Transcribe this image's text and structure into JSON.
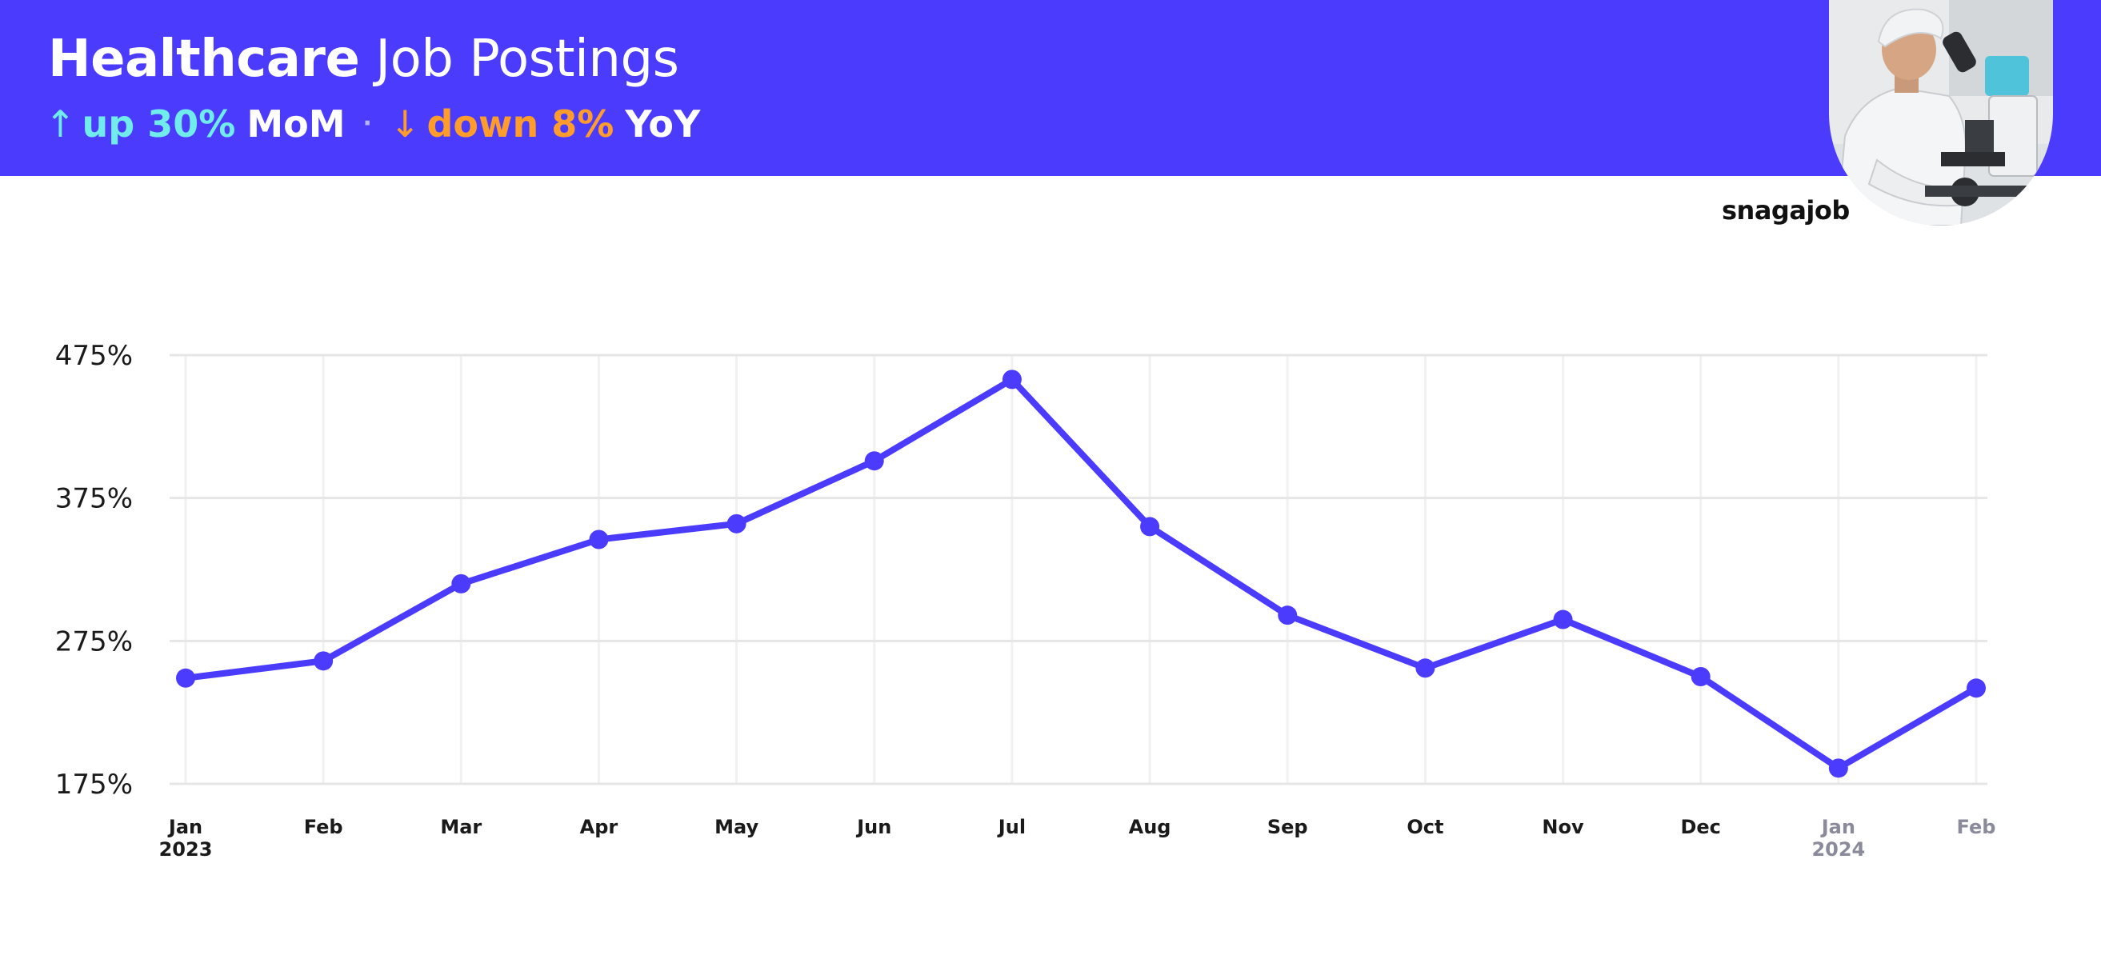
{
  "header": {
    "title_bold": "Healthcare",
    "title_light": "Job Postings",
    "mom": {
      "arrow": "↑",
      "text": "up 30%",
      "suffix": "MoM"
    },
    "separator": "·",
    "yoy": {
      "arrow": "↓",
      "text": "down 8%",
      "suffix": "YoY"
    }
  },
  "brand": "snagajob",
  "colors": {
    "banner": "#4b3cfd",
    "line": "#4b3cfd",
    "up": "#71ecec",
    "down": "#ff9c2b"
  },
  "chart_data": {
    "type": "line",
    "title": "",
    "xlabel": "",
    "ylabel": "",
    "ylim": [
      175,
      475
    ],
    "yticks": [
      "475%",
      "375%",
      "275%",
      "175%"
    ],
    "grid": true,
    "categories": [
      {
        "month": "Jan",
        "year": "2023"
      },
      {
        "month": "Feb",
        "year": ""
      },
      {
        "month": "Mar",
        "year": ""
      },
      {
        "month": "Apr",
        "year": ""
      },
      {
        "month": "May",
        "year": ""
      },
      {
        "month": "Jun",
        "year": ""
      },
      {
        "month": "Jul",
        "year": ""
      },
      {
        "month": "Aug",
        "year": ""
      },
      {
        "month": "Sep",
        "year": ""
      },
      {
        "month": "Oct",
        "year": ""
      },
      {
        "month": "Nov",
        "year": ""
      },
      {
        "month": "Dec",
        "year": ""
      },
      {
        "month": "Jan",
        "year": "2024"
      },
      {
        "month": "Feb",
        "year": ""
      }
    ],
    "series": [
      {
        "values": [
          249,
          261,
          315,
          346,
          357,
          401,
          458,
          355,
          293,
          256,
          290,
          250,
          186,
          242
        ]
      }
    ]
  }
}
